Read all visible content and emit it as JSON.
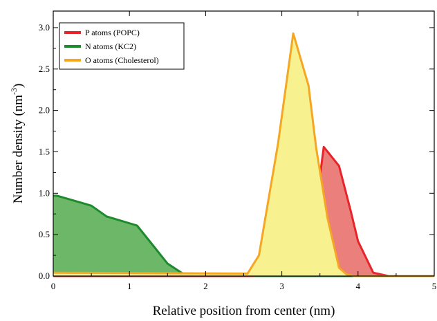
{
  "chart_data": {
    "type": "area",
    "xlabel": "Relative position from center (nm)",
    "ylabel": "Number density (nm",
    "ylabel_sup": "-3",
    "ylabel_close": ")",
    "xlim": [
      0,
      5
    ],
    "ylim": [
      0,
      3.2
    ],
    "xticks": [
      0,
      1,
      2,
      3,
      4,
      5
    ],
    "yticks": [
      0.0,
      0.5,
      1.0,
      1.5,
      2.0,
      2.5,
      3.0
    ],
    "xtick_labels": [
      "0",
      "1",
      "2",
      "3",
      "4",
      "5"
    ],
    "ytick_labels": [
      "0.0",
      "0.5",
      "1.0",
      "1.5",
      "2.0",
      "2.5",
      "3.0"
    ],
    "grid": false,
    "legend_position": "top-left",
    "series": [
      {
        "name": "N atoms (KC2)",
        "color": "#1e8a2e",
        "fill": "#6cb868",
        "x": [
          0,
          0.05,
          0.5,
          0.7,
          1.1,
          1.3,
          1.5,
          1.7,
          1.85,
          2.0,
          2.2,
          5.0
        ],
        "y": [
          0.97,
          0.97,
          0.85,
          0.72,
          0.61,
          0.38,
          0.15,
          0.03,
          0.01,
          0.0,
          0.0,
          0.0
        ]
      },
      {
        "name": "P atoms (POPC)",
        "color": "#e8242a",
        "fill": "#ea7f7b",
        "x": [
          0,
          2.6,
          2.75,
          2.95,
          3.15,
          3.35,
          3.5,
          3.55,
          3.75,
          3.9,
          4.0,
          4.2,
          4.4,
          5.0
        ],
        "y": [
          0.0,
          0.0,
          0.01,
          0.05,
          0.15,
          0.5,
          1.2,
          1.56,
          1.33,
          0.8,
          0.42,
          0.04,
          0.0,
          0.0
        ]
      },
      {
        "name": "O atoms (Cholesterol)",
        "color": "#f5a623",
        "fill": "#f7f190",
        "x": [
          0,
          2.4,
          2.55,
          2.7,
          2.95,
          3.15,
          3.35,
          3.45,
          3.6,
          3.75,
          3.85,
          3.95,
          5.0
        ],
        "y": [
          0.04,
          0.03,
          0.03,
          0.25,
          1.6,
          2.93,
          2.3,
          1.55,
          0.7,
          0.1,
          0.02,
          0.0,
          0.0
        ]
      }
    ],
    "legend_order": [
      "P atoms (POPC)",
      "N atoms (KC2)",
      "O atoms (Cholesterol)"
    ]
  }
}
